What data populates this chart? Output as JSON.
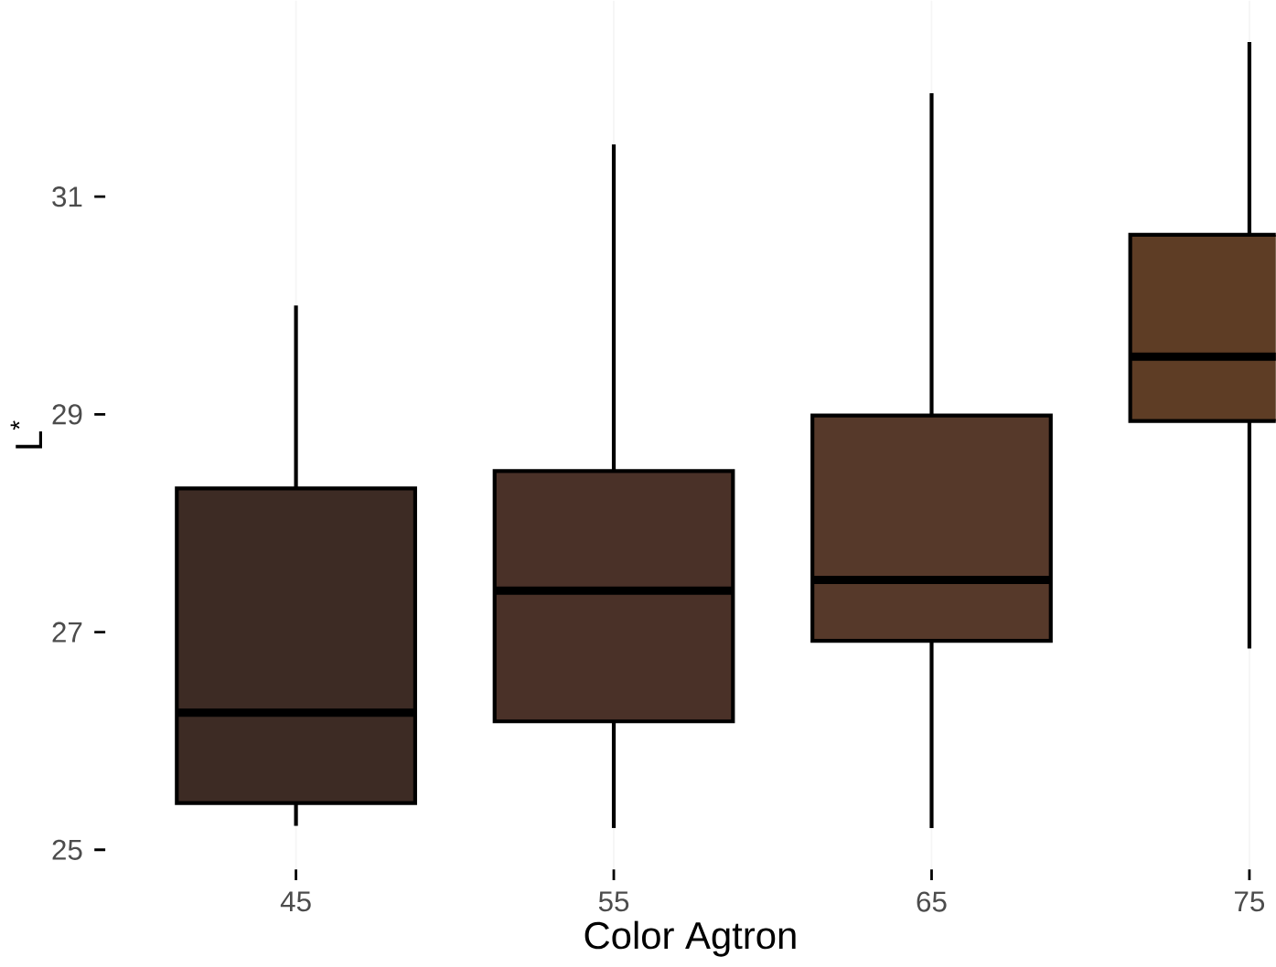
{
  "chart_data": {
    "type": "box",
    "xlabel": "Color Agtron",
    "ylabel": "L$^{*}$",
    "categories": [
      "45",
      "55",
      "65",
      "75"
    ],
    "boxes": [
      {
        "low": 25.22,
        "q1": 25.43,
        "median": 26.26,
        "q3": 28.32,
        "high": 30.0
      },
      {
        "low": 25.2,
        "q1": 26.18,
        "median": 27.38,
        "q3": 28.48,
        "high": 31.48
      },
      {
        "low": 25.2,
        "q1": 26.92,
        "median": 27.48,
        "q3": 28.99,
        "high": 31.95
      },
      {
        "low": 26.85,
        "q1": 28.94,
        "median": 29.53,
        "q3": 30.65,
        "high": 32.42
      }
    ],
    "colors": [
      "#3d2b24",
      "#4a3128",
      "#56392a",
      "#5e3d25"
    ],
    "ylim": [
      24.82,
      32.8
    ],
    "yticks": [
      25,
      27,
      29,
      31
    ],
    "grid": "x"
  }
}
